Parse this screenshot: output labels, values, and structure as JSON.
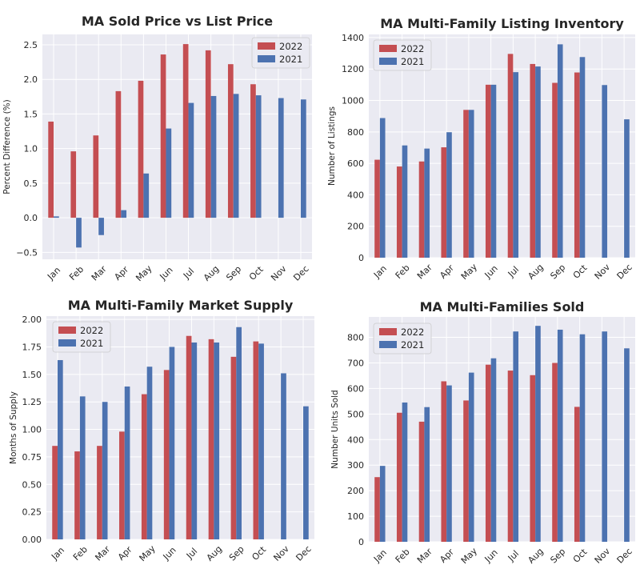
{
  "colors": {
    "series_2022": "#c44e52",
    "series_2021": "#4c72b0",
    "plot_bg": "#eaeaf2",
    "grid": "#ffffff",
    "text": "#262626"
  },
  "chart_data": [
    {
      "type": "bar",
      "title": "MA Sold Price vs List Price",
      "xlabel": "",
      "ylabel": "Percent Difference (%)",
      "ylim": [
        -0.6,
        2.65
      ],
      "yticks": [
        -0.5,
        0.0,
        0.5,
        1.0,
        1.5,
        2.0,
        2.5
      ],
      "ytick_labels": [
        "−0.5",
        "0.0",
        "0.5",
        "1.0",
        "1.5",
        "2.0",
        "2.5"
      ],
      "categories": [
        "Jan",
        "Feb",
        "Mar",
        "Apr",
        "May",
        "Jun",
        "Jul",
        "Aug",
        "Sep",
        "Oct",
        "Nov",
        "Dec"
      ],
      "legend": "top-right",
      "grid": true,
      "series": [
        {
          "name": "2022",
          "color": "#c44e52",
          "values": [
            1.39,
            0.96,
            1.19,
            1.83,
            1.98,
            2.36,
            2.51,
            2.42,
            2.22,
            1.93,
            null,
            null
          ]
        },
        {
          "name": "2021",
          "color": "#4c72b0",
          "values": [
            0.02,
            -0.43,
            -0.25,
            0.11,
            0.64,
            1.29,
            1.66,
            1.76,
            1.79,
            1.77,
            1.73,
            1.71
          ]
        }
      ]
    },
    {
      "type": "bar",
      "title": "MA Multi-Family Listing Inventory",
      "xlabel": "",
      "ylabel": "Number of Listings",
      "ylim": [
        0,
        1420
      ],
      "yticks": [
        0,
        200,
        400,
        600,
        800,
        1000,
        1200,
        1400
      ],
      "ytick_labels": [
        "0",
        "200",
        "400",
        "600",
        "800",
        "1000",
        "1200",
        "1400"
      ],
      "categories": [
        "Jan",
        "Feb",
        "Mar",
        "Apr",
        "May",
        "Jun",
        "Jul",
        "Aug",
        "Sep",
        "Oct",
        "Nov",
        "Dec"
      ],
      "legend": "top-left",
      "grid": true,
      "series": [
        {
          "name": "2022",
          "color": "#c44e52",
          "values": [
            623,
            580,
            612,
            702,
            940,
            1100,
            1296,
            1232,
            1112,
            1178,
            null,
            null
          ]
        },
        {
          "name": "2021",
          "color": "#4c72b0",
          "values": [
            888,
            714,
            694,
            798,
            940,
            1100,
            1180,
            1216,
            1357,
            1276,
            1098,
            880
          ]
        }
      ]
    },
    {
      "type": "bar",
      "title": "MA Multi-Family Market Supply",
      "xlabel": "",
      "ylabel": "Months of Supply",
      "ylim": [
        0,
        2.03
      ],
      "yticks": [
        0.0,
        0.25,
        0.5,
        0.75,
        1.0,
        1.25,
        1.5,
        1.75,
        2.0
      ],
      "ytick_labels": [
        "0.00",
        "0.25",
        "0.50",
        "0.75",
        "1.00",
        "1.25",
        "1.50",
        "1.75",
        "2.00"
      ],
      "categories": [
        "Jan",
        "Feb",
        "Mar",
        "Apr",
        "May",
        "Jun",
        "Jul",
        "Aug",
        "Sep",
        "Oct",
        "Nov",
        "Dec"
      ],
      "legend": "top-left",
      "grid": true,
      "series": [
        {
          "name": "2022",
          "color": "#c44e52",
          "values": [
            0.85,
            0.8,
            0.85,
            0.98,
            1.32,
            1.54,
            1.85,
            1.82,
            1.66,
            1.8,
            null,
            null
          ]
        },
        {
          "name": "2021",
          "color": "#4c72b0",
          "values": [
            1.63,
            1.3,
            1.25,
            1.39,
            1.57,
            1.75,
            1.79,
            1.79,
            1.93,
            1.78,
            1.51,
            1.21
          ]
        }
      ]
    },
    {
      "type": "bar",
      "title": "MA Multi-Families Sold",
      "xlabel": "",
      "ylabel": "Number Units Sold",
      "ylim": [
        0,
        880
      ],
      "yticks": [
        0,
        100,
        200,
        300,
        400,
        500,
        600,
        700,
        800
      ],
      "ytick_labels": [
        "0",
        "100",
        "200",
        "300",
        "400",
        "500",
        "600",
        "700",
        "800"
      ],
      "categories": [
        "Jan",
        "Feb",
        "Mar",
        "Apr",
        "May",
        "Jun",
        "Jul",
        "Aug",
        "Sep",
        "Oct",
        "Nov",
        "Dec"
      ],
      "legend": "top-left",
      "grid": true,
      "series": [
        {
          "name": "2022",
          "color": "#c44e52",
          "values": [
            253,
            505,
            470,
            628,
            553,
            693,
            670,
            652,
            700,
            528,
            null,
            null
          ]
        },
        {
          "name": "2021",
          "color": "#4c72b0",
          "values": [
            297,
            545,
            527,
            612,
            662,
            718,
            823,
            845,
            830,
            812,
            823,
            757
          ]
        }
      ]
    }
  ]
}
